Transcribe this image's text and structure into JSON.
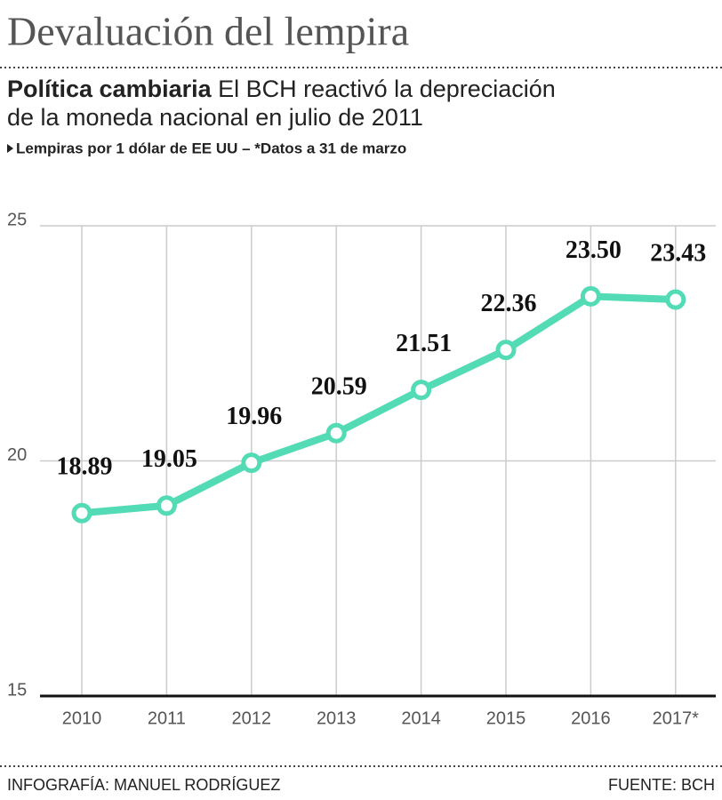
{
  "chart_data": {
    "type": "line",
    "title": "Devaluación del lempira",
    "subtitle": {
      "lead": "Política cambiaria",
      "lines": [
        "El BCH reactivó la depreciación",
        "de la moneda nacional en julio de 2011"
      ]
    },
    "note": "Lempiras por 1 dólar de EE UU – *Datos a 31 de marzo",
    "categories": [
      "2010",
      "2011",
      "2012",
      "2013",
      "2014",
      "2015",
      "2016",
      "2017*"
    ],
    "values": [
      18.89,
      19.05,
      19.96,
      20.59,
      21.51,
      22.36,
      23.5,
      23.43
    ],
    "value_labels": [
      "18.89",
      "19.05",
      "19.96",
      "20.59",
      "21.51",
      "22.36",
      "23.50",
      "23.43"
    ],
    "color": "#52dbb4",
    "ylim": [
      15,
      25
    ],
    "yticks": [
      15,
      20,
      25
    ],
    "grid": true,
    "credit": "INFOGRAFÍA: MANUEL RODRÍGUEZ",
    "source": "FUENTE: BCH"
  }
}
